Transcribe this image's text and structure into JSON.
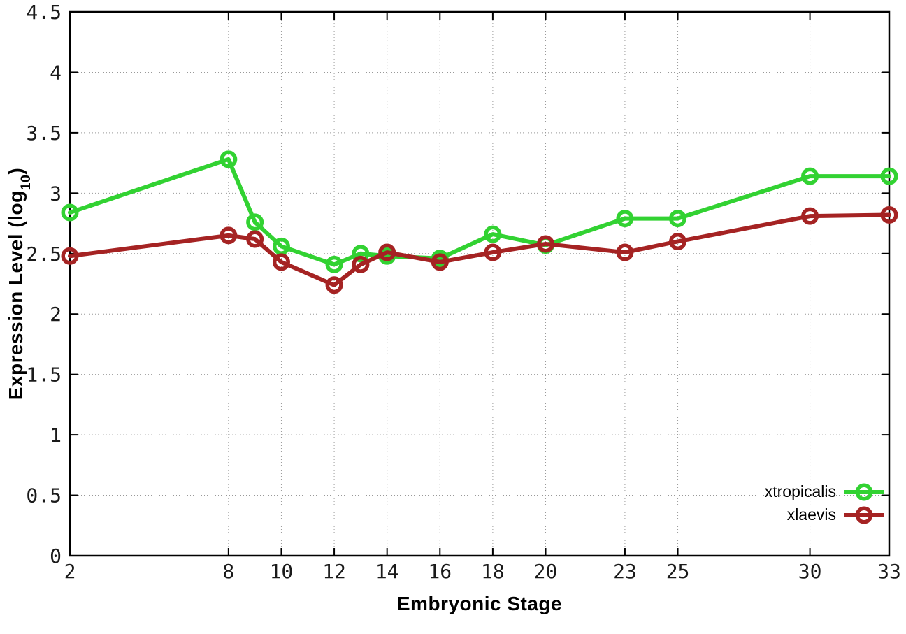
{
  "chart_data": {
    "type": "line",
    "title": "",
    "xlabel": "Embryonic Stage",
    "ylabel": "Expression Level (log10)",
    "ylabel_parts": {
      "text": "Expression Level (log",
      "sub": "10",
      "close": ")"
    },
    "x": [
      2,
      8,
      9,
      10,
      12,
      13,
      14,
      16,
      18,
      20,
      23,
      25,
      30,
      33
    ],
    "series": [
      {
        "name": "xtropicalis",
        "color": "#32d232",
        "values": [
          2.84,
          3.28,
          2.76,
          2.56,
          2.41,
          2.5,
          2.48,
          2.46,
          2.66,
          2.57,
          2.79,
          2.79,
          3.14,
          3.14
        ]
      },
      {
        "name": "xlaevis",
        "color": "#a52323",
        "values": [
          2.48,
          2.65,
          2.62,
          2.43,
          2.24,
          2.41,
          2.51,
          2.43,
          2.51,
          2.58,
          2.51,
          2.6,
          2.81,
          2.82
        ]
      }
    ],
    "xticks": [
      2,
      8,
      10,
      12,
      14,
      16,
      18,
      20,
      23,
      25,
      30,
      33
    ],
    "yticks": [
      0,
      0.5,
      1,
      1.5,
      2,
      2.5,
      3,
      3.5,
      4,
      4.5
    ],
    "xlim": [
      2,
      33
    ],
    "ylim": [
      0,
      4.5
    ],
    "grid": true,
    "legend_position": "bottom-right",
    "marker": "open-circle",
    "axis_color": "#000000",
    "grid_color": "#999999",
    "tick_label_color": "#1a1a1a"
  }
}
